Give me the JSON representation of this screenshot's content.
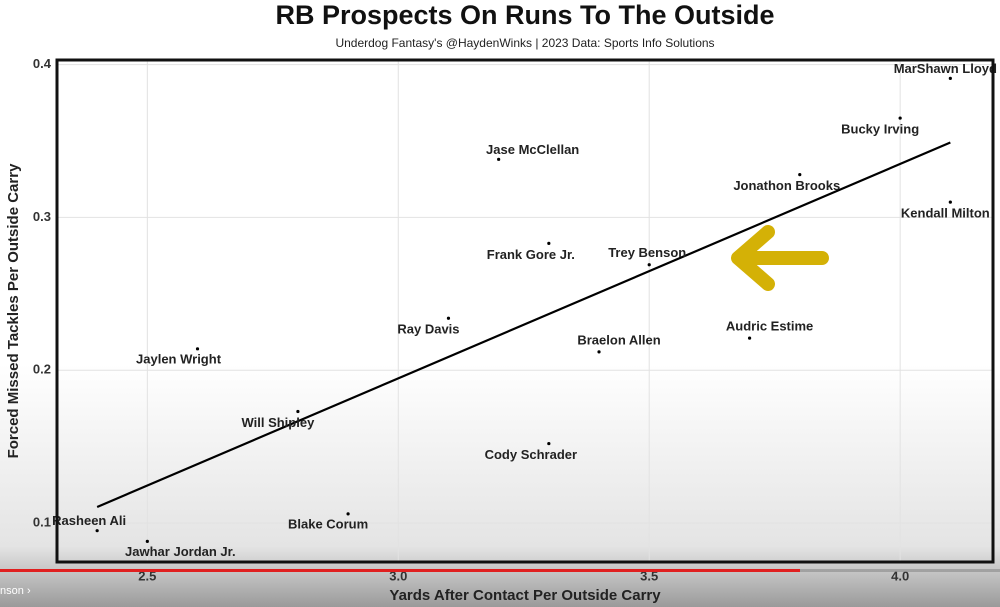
{
  "chart_data": {
    "type": "scatter",
    "title": "RB Prospects On Runs To The Outside",
    "subtitle": "Underdog Fantasy's @HaydenWinks | 2023 Data: Sports Info Solutions",
    "x_label": "Yards After Contact Per Outside Carry",
    "y_label": "Forced Missed Tackles Per Outside Carry",
    "xlim": [
      2.32,
      4.185
    ],
    "ylim": [
      0.0745,
      0.403
    ],
    "xticks": [
      2.5,
      {
        "value": 3,
        "label": "3.0"
      },
      3.5,
      {
        "value": 4,
        "label": "4.0"
      }
    ],
    "yticks": [
      0.1,
      0.2,
      0.3,
      0.4
    ],
    "grid": true,
    "color": "#000000",
    "points": [
      {
        "label": "MarShawn Lloyd",
        "x": 4.1,
        "y": 0.391
      },
      {
        "label": "Bucky Irving",
        "x": 4.0,
        "y": 0.365
      },
      {
        "label": "Jonathon Brooks",
        "x": 3.8,
        "y": 0.328
      },
      {
        "label": "Kendall Milton",
        "x": 4.1,
        "y": 0.31
      },
      {
        "label": "Jase McClellan",
        "x": 3.2,
        "y": 0.338
      },
      {
        "label": "Frank Gore Jr.",
        "x": 3.3,
        "y": 0.283
      },
      {
        "label": "Trey Benson",
        "x": 3.5,
        "y": 0.269
      },
      {
        "label": "Ray Davis",
        "x": 3.1,
        "y": 0.234
      },
      {
        "label": "Braelon Allen",
        "x": 3.4,
        "y": 0.212
      },
      {
        "label": "Audric Estime",
        "x": 3.7,
        "y": 0.221
      },
      {
        "label": "Jaylen Wright",
        "x": 2.6,
        "y": 0.214
      },
      {
        "label": "Will Shipley",
        "x": 2.8,
        "y": 0.173
      },
      {
        "label": "Cody Schrader",
        "x": 3.3,
        "y": 0.152
      },
      {
        "label": "Blake Corum",
        "x": 2.9,
        "y": 0.106
      },
      {
        "label": "Rasheen Ali",
        "x": 2.4,
        "y": 0.095
      },
      {
        "label": "Jawhar Jordan Jr.",
        "x": 2.5,
        "y": 0.088
      }
    ],
    "trendline": {
      "x": [
        2.4,
        4.1
      ],
      "y": [
        0.1105,
        0.349
      ]
    }
  },
  "video": {
    "caption": "nson"
  }
}
